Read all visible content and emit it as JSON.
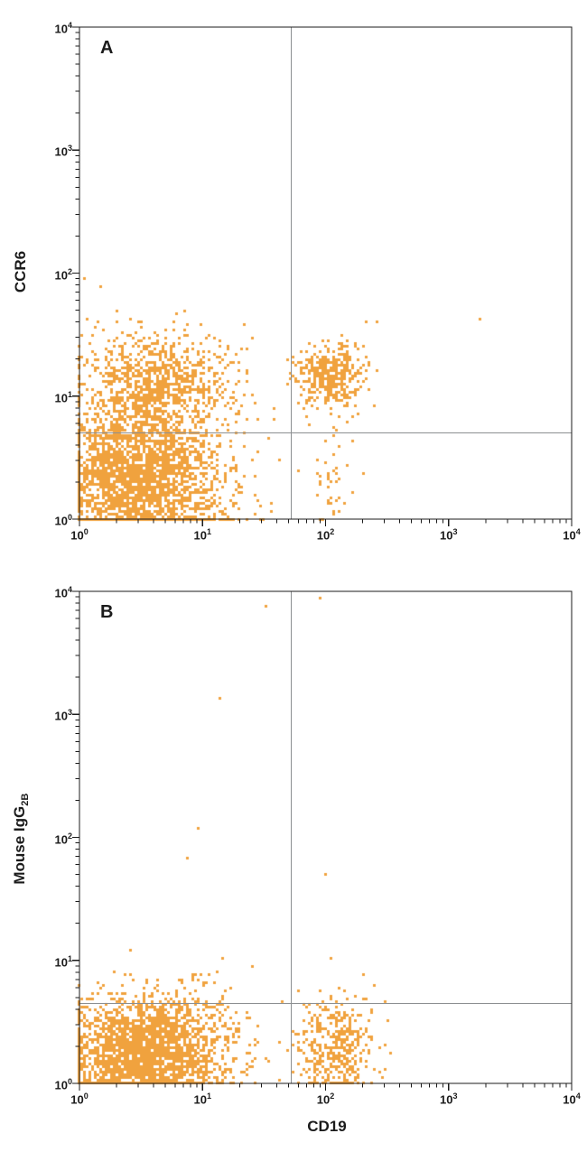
{
  "colors": {
    "dot": "#F0A23E",
    "axis": "#1b1b1b",
    "gate": "#8c8f91",
    "text": "#1b1b1b",
    "background": "#ffffff"
  },
  "chart_data": [
    {
      "panel_label": "A",
      "type": "scatter",
      "xlabel": "CD19",
      "ylabel": "CCR6",
      "x_scale": "log10",
      "y_scale": "log10",
      "xlim_log": [
        0,
        4
      ],
      "ylim_log": [
        0,
        4
      ],
      "x_tick_exponents": [
        0,
        1,
        2,
        3,
        4
      ],
      "y_tick_exponents": [
        0,
        1,
        2,
        3,
        4
      ],
      "grid": false,
      "legend": "none",
      "quadrant_gate": {
        "x_log": 1.72,
        "y_log": 0.7
      },
      "dot_color": "#F0A23E",
      "clusters": [
        {
          "name": "CD19-neg CCR6-neg",
          "cx": 0.5,
          "cy": 0.3,
          "sx": 0.33,
          "sy": 0.28,
          "n": 2600
        },
        {
          "name": "CD19-neg CCR6-pos",
          "cx": 0.62,
          "cy": 1.08,
          "sx": 0.3,
          "sy": 0.22,
          "n": 1000
        },
        {
          "name": "mid-sparse",
          "cx": 1.35,
          "cy": 0.55,
          "sx": 0.15,
          "sy": 0.38,
          "n": 25
        },
        {
          "name": "CD19-pos CCR6-pos",
          "cx": 2.03,
          "cy": 1.17,
          "sx": 0.14,
          "sy": 0.13,
          "n": 380
        },
        {
          "name": "CD19-pos CCR6-neg",
          "cx": 2.03,
          "cy": 0.35,
          "sx": 0.1,
          "sy": 0.24,
          "n": 45
        }
      ],
      "outliers": [
        [
          3.26,
          1.63
        ],
        [
          2.42,
          1.6
        ],
        [
          0.03,
          1.95
        ],
        [
          1.85,
          0.95
        ],
        [
          2.35,
          1.25
        ]
      ]
    },
    {
      "panel_label": "B",
      "type": "scatter",
      "xlabel": "CD19",
      "ylabel": "Mouse IgG",
      "ylabel_sub": "2B",
      "x_scale": "log10",
      "y_scale": "log10",
      "xlim_log": [
        0,
        4
      ],
      "ylim_log": [
        0,
        4
      ],
      "x_tick_exponents": [
        0,
        1,
        2,
        3,
        4
      ],
      "y_tick_exponents": [
        0,
        1,
        2,
        3,
        4
      ],
      "grid": false,
      "legend": "none",
      "quadrant_gate": {
        "x_log": 1.72,
        "y_log": 0.65
      },
      "dot_color": "#F0A23E",
      "clusters": [
        {
          "name": "CD19-neg IgG-neg",
          "cx": 0.55,
          "cy": 0.25,
          "sx": 0.33,
          "sy": 0.22,
          "n": 2600
        },
        {
          "name": "above-gate sparse",
          "cx": 0.98,
          "cy": 0.8,
          "sx": 0.18,
          "sy": 0.14,
          "n": 14
        },
        {
          "name": "CD19-pos IgG-neg",
          "cx": 2.07,
          "cy": 0.3,
          "sx": 0.16,
          "sy": 0.2,
          "n": 420
        }
      ],
      "outliers": [
        [
          1.13,
          3.12
        ],
        [
          0.97,
          2.07
        ],
        [
          0.88,
          1.82
        ],
        [
          1.96,
          3.94
        ],
        [
          1.52,
          3.88
        ],
        [
          2.0,
          1.7
        ],
        [
          2.3,
          0.88
        ],
        [
          1.4,
          0.95
        ],
        [
          1.22,
          0.78
        ]
      ]
    }
  ]
}
